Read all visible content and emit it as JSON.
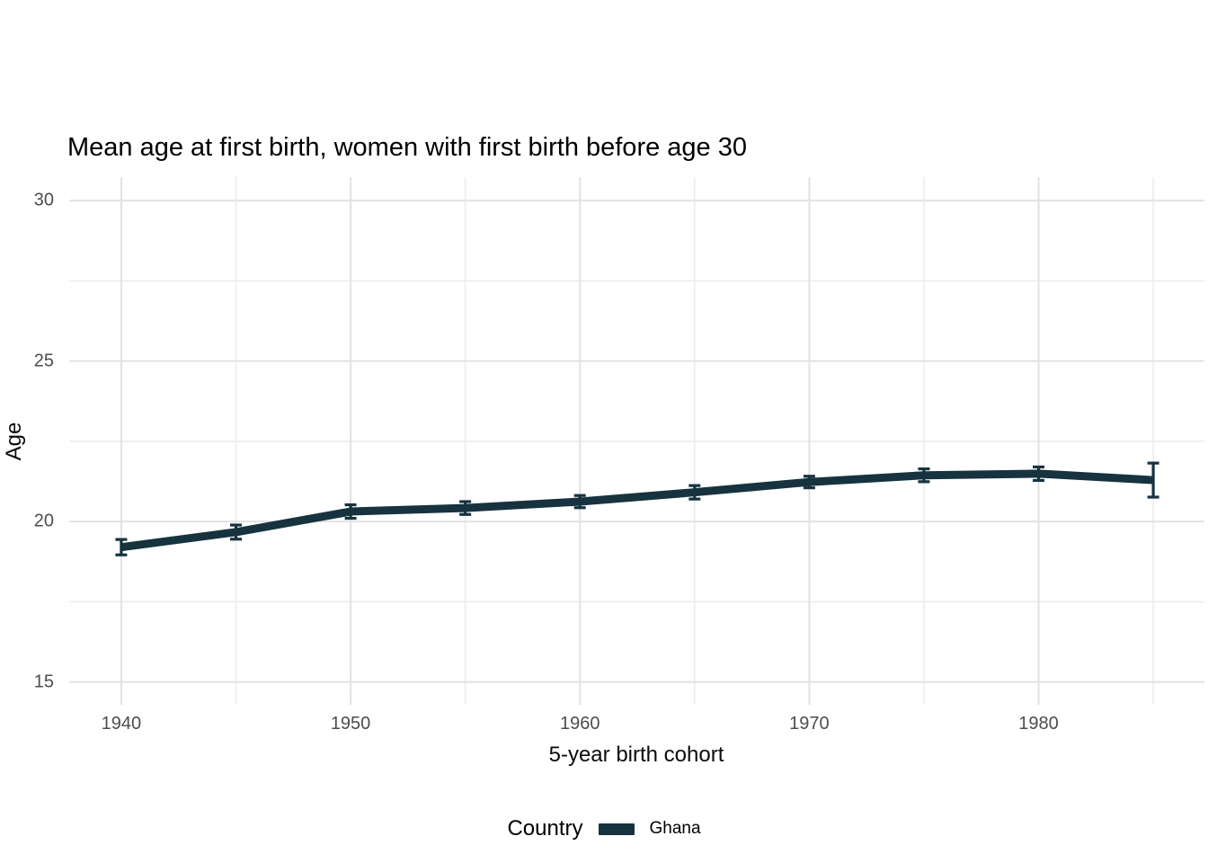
{
  "chart_data": {
    "type": "line",
    "title": "Mean age at first birth, women with first birth before age 30",
    "xlabel": "5-year birth cohort",
    "ylabel": "Age",
    "x": [
      1940,
      1945,
      1950,
      1955,
      1960,
      1965,
      1970,
      1975,
      1980,
      1985
    ],
    "series": [
      {
        "name": "Ghana",
        "color": "#16333f",
        "values": [
          19.2,
          19.67,
          20.31,
          20.42,
          20.62,
          20.91,
          21.23,
          21.44,
          21.49,
          21.29
        ],
        "ci_lower": [
          18.96,
          19.45,
          20.1,
          20.22,
          20.43,
          20.7,
          21.05,
          21.24,
          21.28,
          20.76
        ],
        "ci_upper": [
          19.44,
          19.89,
          20.52,
          20.62,
          20.81,
          21.12,
          21.41,
          21.64,
          21.7,
          21.82
        ]
      }
    ],
    "x_ticks": [
      1940,
      1950,
      1960,
      1970,
      1980
    ],
    "x_minor_ticks": [
      1945,
      1955,
      1965,
      1975,
      1985
    ],
    "y_ticks": [
      30,
      25,
      20,
      15
    ],
    "y_minor_ticks": [
      17.5,
      22.5,
      27.5
    ],
    "xlim": [
      1937.73,
      1987.23
    ],
    "ylim": [
      14.29,
      30.73
    ],
    "grid": true,
    "legend_position": "bottom",
    "legend_title": "Country"
  },
  "legend": {
    "title": "Country",
    "items": [
      {
        "label": "Ghana",
        "color": "#16333f"
      }
    ]
  },
  "colors": {
    "series_ghana": "#16333f",
    "grid_major": "#e2e2e2",
    "grid_minor": "#ececec",
    "tick_text": "#4d4d4d",
    "background": "#ffffff"
  }
}
